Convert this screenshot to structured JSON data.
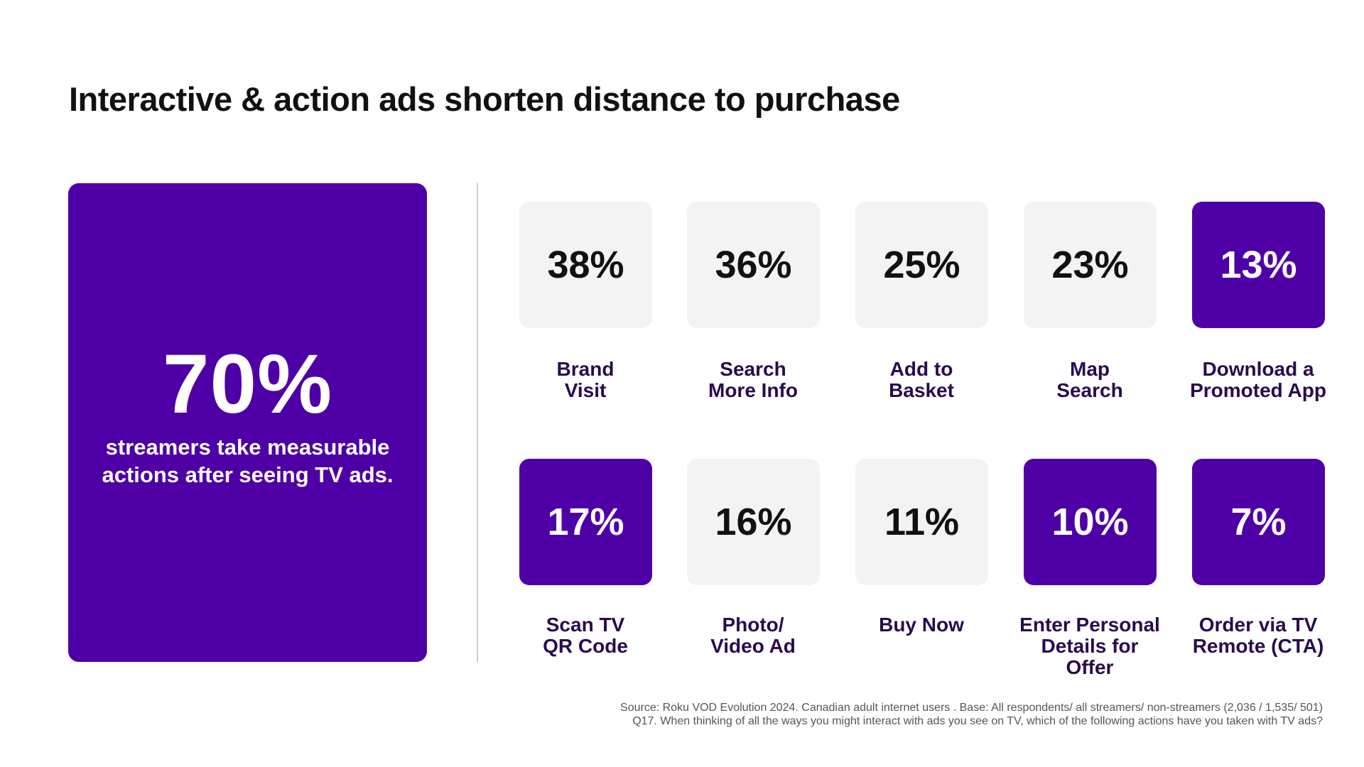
{
  "title": "Interactive & action ads shorten distance to purchase",
  "hero": {
    "value": "70%",
    "text": "streamers take measurable actions after seeing TV ads."
  },
  "colors": {
    "accent": "#4e00a6",
    "tile": "#f3f3f3"
  },
  "tiles": [
    {
      "value": "38%",
      "label": "Brand Visit",
      "highlight": false
    },
    {
      "value": "36%",
      "label": "Search More Info",
      "highlight": false
    },
    {
      "value": "25%",
      "label": "Add to Basket",
      "highlight": false
    },
    {
      "value": "23%",
      "label": "Map Search",
      "highlight": false
    },
    {
      "value": "13%",
      "label": "Download a Promoted App",
      "highlight": true
    },
    {
      "value": "17%",
      "label": "Scan TV QR Code",
      "highlight": true
    },
    {
      "value": "16%",
      "label": "Photo/ Video Ad",
      "highlight": false
    },
    {
      "value": "11%",
      "label": "Buy Now",
      "highlight": false
    },
    {
      "value": "10%",
      "label": "Enter Personal Details for Offer",
      "highlight": true
    },
    {
      "value": "7%",
      "label": "Order via TV Remote (CTA)",
      "highlight": true
    }
  ],
  "footnote": {
    "line1": "Source: Roku VOD Evolution 2024. Canadian adult internet users . Base: All respondents/ all streamers/ non-streamers (2,036 / 1,535/ 501)",
    "line2": "Q17. When thinking of all the ways you might interact with ads you see on TV, which of the following actions have you taken with TV ads?"
  }
}
